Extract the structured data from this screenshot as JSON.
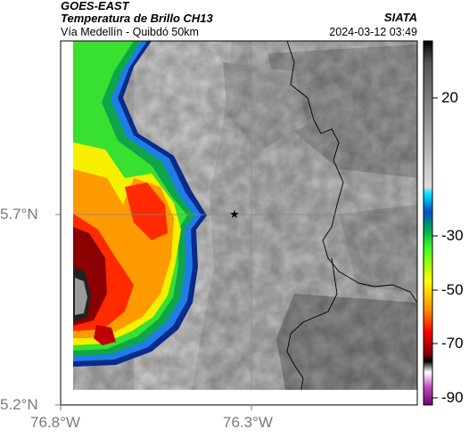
{
  "header": {
    "satellite": "GOES-EAST",
    "product": "Temperatura de Brillo CH13",
    "route": "Vía Medellín - Quibdó 50km",
    "organization": "SIATA",
    "timestamp": "2024-03-12 03:49"
  },
  "axes": {
    "lat_ticks": [
      "5.7°N",
      "5.2°N"
    ],
    "lon_ticks": [
      "76.8°W",
      "76.3°W"
    ]
  },
  "colorbar": {
    "ticks": [
      "20",
      "-30",
      "-50",
      "-70",
      "-90"
    ]
  },
  "markers": [
    {
      "name": "star-marker",
      "symbol": "★",
      "lat": 5.7,
      "lon": -76.39
    }
  ],
  "colors": {
    "background": "#ffffff",
    "axis_label": "#7a7a7a",
    "grid": "#8a8a8a"
  }
}
